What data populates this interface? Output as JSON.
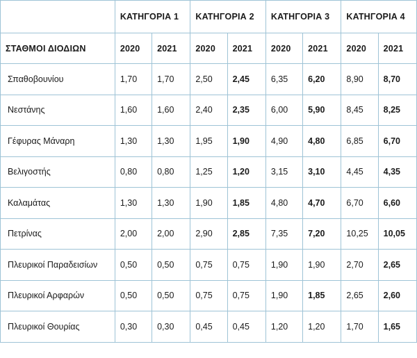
{
  "table": {
    "categories": [
      "ΚΑΤΗΓΟΡΙΑ 1",
      "ΚΑΤΗΓΟΡΙΑ 2",
      "ΚΑΤΗΓΟΡΙΑ 3",
      "ΚΑΤΗΓΟΡΙΑ 4"
    ],
    "station_header": "ΣΤΑΘΜΟΙ ΔΙΟΔΙΩΝ",
    "years": [
      "2020",
      "2021",
      "2020",
      "2021",
      "2020",
      "2021",
      "2020",
      "2021"
    ],
    "rows": [
      {
        "station": "Σπαθοβουνίου",
        "values": [
          "1,70",
          "1,70",
          "2,50",
          "2,45",
          "6,35",
          "6,20",
          "8,90",
          "8,70"
        ],
        "bold": [
          false,
          false,
          false,
          true,
          false,
          true,
          false,
          true
        ]
      },
      {
        "station": "Νεστάνης",
        "values": [
          "1,60",
          "1,60",
          "2,40",
          "2,35",
          "6,00",
          "5,90",
          "8,45",
          "8,25"
        ],
        "bold": [
          false,
          false,
          false,
          true,
          false,
          true,
          false,
          true
        ]
      },
      {
        "station": "Γέφυρας Μάναρη",
        "values": [
          "1,30",
          "1,30",
          "1,95",
          "1,90",
          "4,90",
          "4,80",
          "6,85",
          "6,70"
        ],
        "bold": [
          false,
          false,
          false,
          true,
          false,
          true,
          false,
          true
        ]
      },
      {
        "station": "Βελιγοστής",
        "values": [
          "0,80",
          "0,80",
          "1,25",
          "1,20",
          "3,15",
          "3,10",
          "4,45",
          "4,35"
        ],
        "bold": [
          false,
          false,
          false,
          true,
          false,
          true,
          false,
          true
        ]
      },
      {
        "station": "Καλαμάτας",
        "values": [
          "1,30",
          "1,30",
          "1,90",
          "1,85",
          "4,80",
          "4,70",
          "6,70",
          "6,60"
        ],
        "bold": [
          false,
          false,
          false,
          true,
          false,
          true,
          false,
          true
        ]
      },
      {
        "station": "Πετρίνας",
        "values": [
          "2,00",
          "2,00",
          "2,90",
          "2,85",
          "7,35",
          "7,20",
          "10,25",
          "10,05"
        ],
        "bold": [
          false,
          false,
          false,
          true,
          false,
          true,
          false,
          true
        ]
      },
      {
        "station": "Πλευρικοί Παραδεισίων",
        "values": [
          "0,50",
          "0,50",
          "0,75",
          "0,75",
          "1,90",
          "1,90",
          "2,70",
          "2,65"
        ],
        "bold": [
          false,
          false,
          false,
          false,
          false,
          false,
          false,
          true
        ]
      },
      {
        "station": "Πλευρικοί Αρφαρών",
        "values": [
          "0,50",
          "0,50",
          "0,75",
          "0,75",
          "1,90",
          "1,85",
          "2,65",
          "2,60"
        ],
        "bold": [
          false,
          false,
          false,
          false,
          false,
          true,
          false,
          true
        ]
      },
      {
        "station": "Πλευρικοί Θουρίας",
        "values": [
          "0,30",
          "0,30",
          "0,45",
          "0,45",
          "1,20",
          "1,20",
          "1,70",
          "1,65"
        ],
        "bold": [
          false,
          false,
          false,
          false,
          false,
          false,
          false,
          true
        ]
      }
    ]
  },
  "colors": {
    "border": "#9ec3d6",
    "text": "#1a1a1a",
    "background": "#ffffff"
  }
}
